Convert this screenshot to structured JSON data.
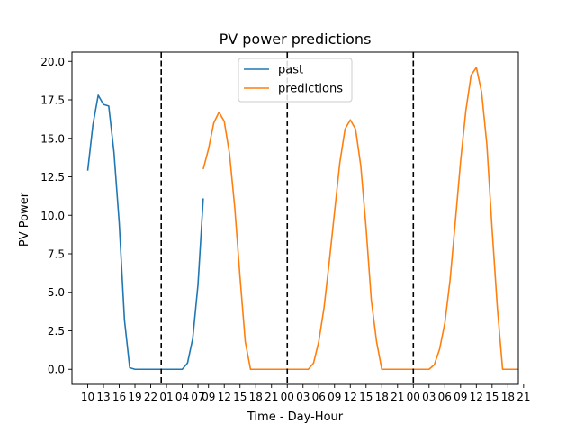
{
  "chart_data": {
    "type": "line",
    "title": "PV power predictions",
    "xlabel": "Time - Day-Hour",
    "ylabel": "PV Power",
    "xlim": [
      -3,
      82
    ],
    "ylim": [
      -0.98,
      20.6
    ],
    "yticks": [
      0.0,
      2.5,
      5.0,
      7.5,
      10.0,
      12.5,
      15.0,
      17.5,
      20.0
    ],
    "ytick_labels": [
      "0.0",
      "2.5",
      "5.0",
      "7.5",
      "10.0",
      "12.5",
      "15.0",
      "17.5",
      "20.0"
    ],
    "x_tick_labels": [
      "10",
      "13",
      "16",
      "19",
      "22",
      "01",
      "04",
      "07",
      "09",
      "12",
      "15",
      "18",
      "21",
      "00",
      "03",
      "06",
      "09",
      "12",
      "15",
      "18",
      "21",
      "00",
      "03",
      "06",
      "09",
      "12",
      "15",
      "18",
      "21"
    ],
    "x_tick_positions": [
      0,
      3,
      6,
      9,
      12,
      15,
      18,
      21,
      23,
      26,
      29,
      32,
      35,
      38,
      41,
      44,
      47,
      50,
      53,
      56,
      59,
      62,
      65,
      68,
      71,
      74,
      77,
      80,
      83
    ],
    "vlines": [
      14,
      38,
      62
    ],
    "legend_position": "top-center",
    "grid": false,
    "series": [
      {
        "name": "past",
        "color": "#1f77b4",
        "x": [
          0,
          1,
          2,
          3,
          4,
          5,
          6,
          7,
          8,
          9,
          10,
          11,
          12,
          13,
          14,
          15,
          16,
          17,
          18,
          19,
          20,
          21,
          22,
          23
        ],
        "y": [
          12.9,
          15.9,
          17.8,
          17.2,
          17.1,
          14.1,
          9.5,
          3.2,
          0.1,
          0.0,
          0.0,
          0.0,
          0.0,
          0.0,
          0.0,
          0.0,
          0.0,
          0.0,
          0.0,
          0.4,
          2.0,
          5.5,
          11.1,
          null
        ]
      },
      {
        "name": "predictions",
        "color": "#ff7f0e",
        "x": [
          22,
          23,
          24,
          25,
          26,
          27,
          28,
          29,
          30,
          31,
          32,
          33,
          34,
          35,
          36,
          37,
          38,
          39,
          40,
          41,
          42,
          43,
          44,
          45,
          46,
          47,
          48,
          49,
          50,
          51,
          52,
          53,
          54,
          55,
          56,
          57,
          58,
          59,
          60,
          61,
          62,
          63,
          64,
          65,
          66,
          67,
          68,
          69,
          70,
          71,
          72,
          73,
          74,
          75,
          76,
          77,
          78,
          79,
          80,
          81,
          82
        ],
        "y": [
          13.0,
          14.3,
          16.0,
          16.7,
          16.1,
          14.0,
          10.5,
          6.0,
          1.8,
          0.0,
          0.0,
          0.0,
          0.0,
          0.0,
          0.0,
          0.0,
          0.0,
          0.0,
          0.0,
          0.0,
          0.0,
          0.4,
          1.8,
          4.0,
          7.0,
          10.2,
          13.4,
          15.6,
          16.2,
          15.6,
          13.2,
          9.2,
          4.5,
          1.8,
          0.0,
          0.0,
          0.0,
          0.0,
          0.0,
          0.0,
          0.0,
          0.0,
          0.0,
          0.0,
          0.3,
          1.3,
          3.0,
          5.8,
          9.6,
          13.5,
          16.8,
          19.1,
          19.6,
          18.0,
          14.6,
          9.1,
          4.0,
          0.0,
          0.0,
          0.0,
          0.0
        ]
      }
    ]
  }
}
